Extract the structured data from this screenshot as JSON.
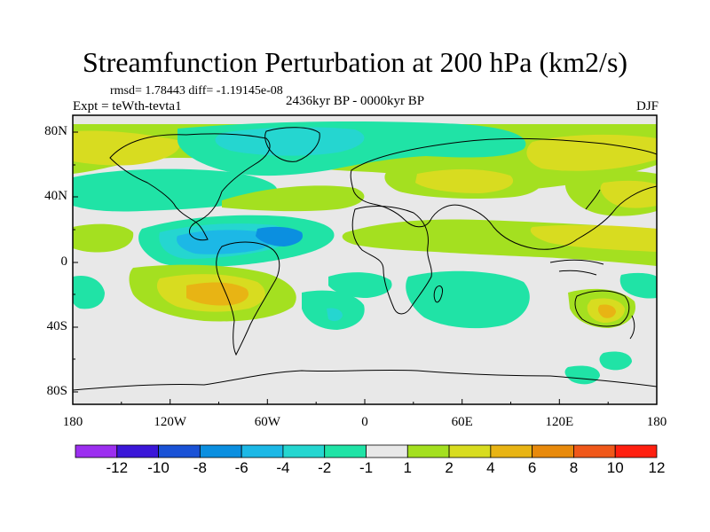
{
  "title": "Streamfunction Perturbation at 200 hPa (km2/s)",
  "stats": "rmsd= 1.78443  diff= -1.19145e-08",
  "experiment": "Expt = teWth-tevta1",
  "period": "2436kyr BP - 0000kyr BP",
  "season": "DJF",
  "lat_labels": [
    "80N",
    "40N",
    "0",
    "40S",
    "80S"
  ],
  "lon_labels": [
    "180",
    "120W",
    "60W",
    "0",
    "60E",
    "120E",
    "180"
  ],
  "colorbar": {
    "labels": [
      "-12",
      "-10",
      "-8",
      "-6",
      "-4",
      "-2",
      "-1",
      "1",
      "2",
      "4",
      "6",
      "8",
      "10",
      "12"
    ],
    "colors": [
      "#9c2ff0",
      "#3b17d8",
      "#1a52d6",
      "#0b8fe0",
      "#1cb8e6",
      "#25d6d0",
      "#20e3a6",
      "#e8e8e8",
      "#a4e020",
      "#d8dc20",
      "#e8b414",
      "#e88a0c",
      "#f0581a",
      "#ff2010"
    ]
  },
  "field_colors": {
    "background": "#e8e8e8",
    "neg_1": "#20e3a6",
    "neg_2": "#25d6d0",
    "neg_4": "#1cb8e6",
    "neg_6": "#0b8fe0",
    "pos_1": "#a4e020",
    "pos_2": "#d8dc20",
    "pos_4": "#e8b414",
    "pos_6": "#e88a0c"
  }
}
